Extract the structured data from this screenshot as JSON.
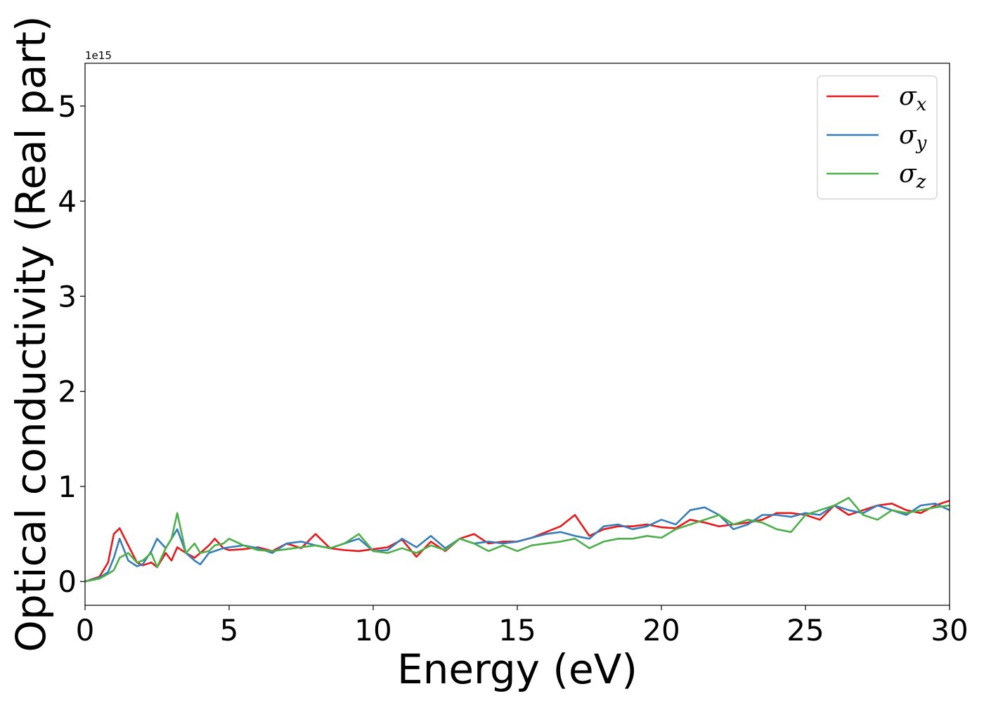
{
  "chart_data": {
    "type": "line",
    "title": "",
    "xlabel": "Energy (eV)",
    "ylabel": "Optical conductivity (Real part)",
    "y_offset_label": "1e15",
    "xlim": [
      0,
      30
    ],
    "ylim": [
      -0.25,
      5.45
    ],
    "xticks": [
      0,
      5,
      10,
      15,
      20,
      25,
      30
    ],
    "yticks": [
      0,
      1,
      2,
      3,
      4,
      5
    ],
    "grid": false,
    "legend_placement": "top-right",
    "colors": {
      "x": "#e41a1c",
      "y": "#377eb8",
      "z": "#4daf4a"
    },
    "x": [
      0,
      0.5,
      0.8,
      1,
      1.2,
      1.5,
      1.8,
      2,
      2.3,
      2.5,
      2.8,
      3,
      3.2,
      3.5,
      3.8,
      4,
      4.3,
      4.5,
      4.8,
      5,
      5.5,
      6,
      6.5,
      7,
      7.5,
      8,
      8.5,
      9,
      9.5,
      10,
      10.5,
      11,
      11.5,
      12,
      12.5,
      13,
      13.5,
      14,
      14.5,
      15,
      15.5,
      16,
      16.5,
      17,
      17.5,
      18,
      18.5,
      19,
      19.5,
      20,
      20.5,
      21,
      21.5,
      22,
      22.5,
      23,
      23.5,
      24,
      24.5,
      25,
      25.5,
      26,
      26.5,
      27,
      27.5,
      28,
      28.5,
      29,
      29.5,
      30
    ],
    "series": [
      {
        "key": "x",
        "name": "σ",
        "subscript": "x",
        "values": [
          0,
          0.05,
          0.2,
          0.5,
          0.56,
          0.38,
          0.2,
          0.17,
          0.2,
          0.15,
          0.3,
          0.22,
          0.36,
          0.3,
          0.25,
          0.3,
          0.38,
          0.45,
          0.35,
          0.33,
          0.34,
          0.36,
          0.32,
          0.4,
          0.35,
          0.5,
          0.35,
          0.33,
          0.32,
          0.34,
          0.36,
          0.44,
          0.26,
          0.42,
          0.32,
          0.45,
          0.5,
          0.4,
          0.42,
          0.42,
          0.46,
          0.52,
          0.58,
          0.7,
          0.48,
          0.55,
          0.58,
          0.58,
          0.6,
          0.57,
          0.56,
          0.65,
          0.62,
          0.58,
          0.6,
          0.62,
          0.65,
          0.72,
          0.72,
          0.7,
          0.65,
          0.8,
          0.7,
          0.75,
          0.8,
          0.82,
          0.75,
          0.72,
          0.8,
          0.85
        ]
      },
      {
        "key": "y",
        "name": "σ",
        "subscript": "y",
        "values": [
          0,
          0.04,
          0.1,
          0.25,
          0.45,
          0.22,
          0.16,
          0.18,
          0.32,
          0.45,
          0.35,
          0.45,
          0.55,
          0.3,
          0.22,
          0.18,
          0.3,
          0.32,
          0.35,
          0.36,
          0.38,
          0.35,
          0.3,
          0.4,
          0.42,
          0.38,
          0.35,
          0.4,
          0.45,
          0.32,
          0.33,
          0.45,
          0.36,
          0.48,
          0.35,
          0.45,
          0.4,
          0.42,
          0.4,
          0.42,
          0.46,
          0.5,
          0.52,
          0.48,
          0.45,
          0.58,
          0.6,
          0.55,
          0.58,
          0.65,
          0.6,
          0.75,
          0.78,
          0.7,
          0.55,
          0.6,
          0.7,
          0.7,
          0.68,
          0.72,
          0.7,
          0.8,
          0.75,
          0.72,
          0.8,
          0.75,
          0.7,
          0.8,
          0.82,
          0.75
        ]
      },
      {
        "key": "z",
        "name": "σ",
        "subscript": "z",
        "values": [
          0,
          0.03,
          0.08,
          0.12,
          0.25,
          0.3,
          0.2,
          0.22,
          0.3,
          0.15,
          0.35,
          0.45,
          0.72,
          0.3,
          0.4,
          0.3,
          0.32,
          0.38,
          0.4,
          0.45,
          0.38,
          0.33,
          0.32,
          0.34,
          0.36,
          0.38,
          0.35,
          0.4,
          0.5,
          0.32,
          0.3,
          0.35,
          0.3,
          0.38,
          0.33,
          0.45,
          0.4,
          0.32,
          0.38,
          0.32,
          0.38,
          0.4,
          0.42,
          0.45,
          0.35,
          0.42,
          0.45,
          0.45,
          0.48,
          0.46,
          0.55,
          0.6,
          0.65,
          0.7,
          0.6,
          0.65,
          0.62,
          0.55,
          0.52,
          0.7,
          0.75,
          0.8,
          0.88,
          0.7,
          0.65,
          0.75,
          0.72,
          0.75,
          0.78,
          0.8
        ]
      }
    ]
  }
}
